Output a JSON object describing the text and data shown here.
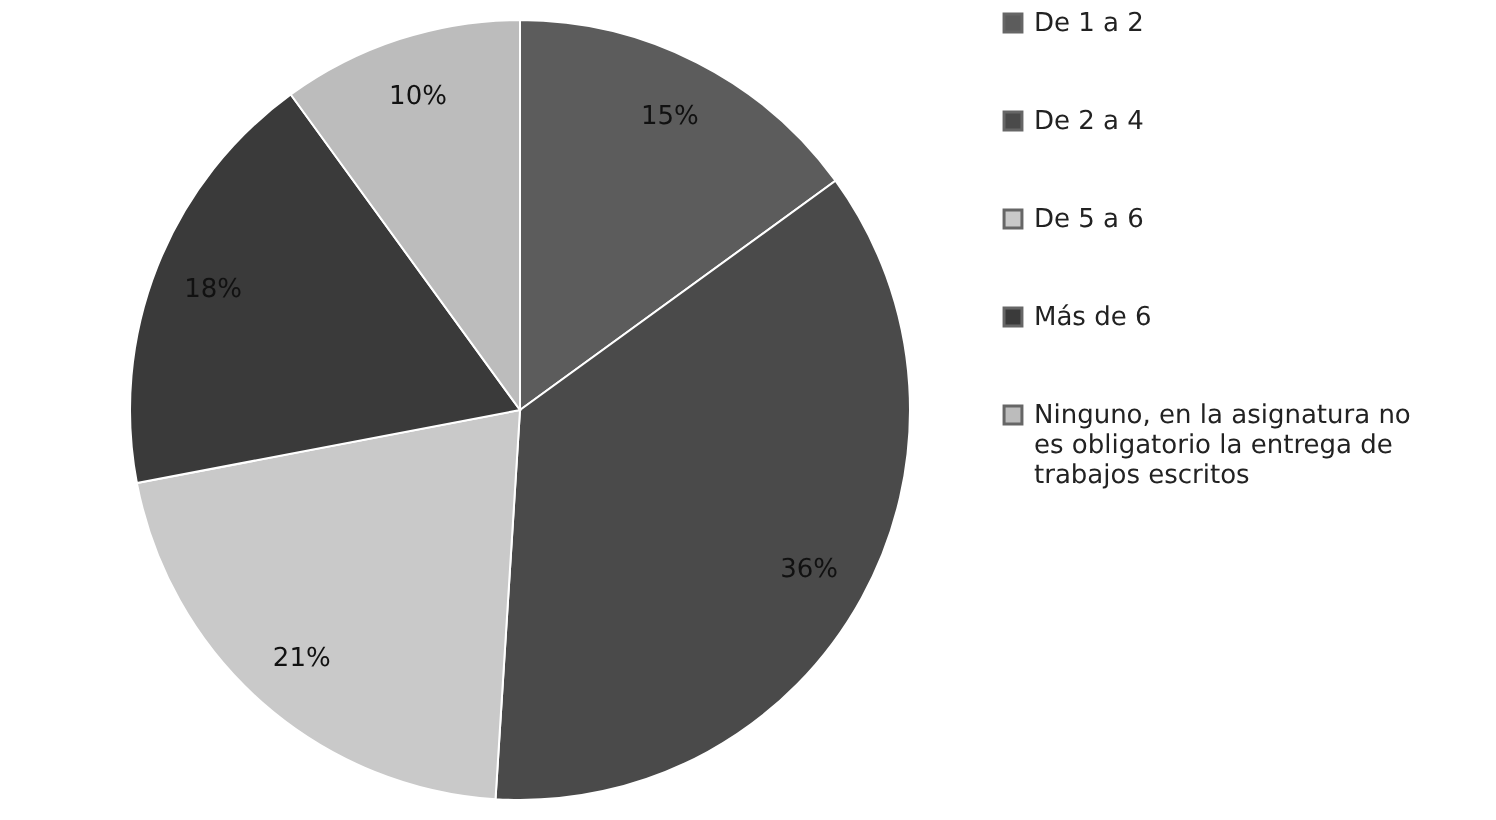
{
  "chart_data": {
    "type": "pie",
    "categories": [
      "De 1 a 2",
      "De 2 a 4",
      "De 5 a 6",
      "Más de 6",
      "Ninguno, en la asignatura no es obligatorio la entrega de trabajos escritos"
    ],
    "values": [
      15,
      36,
      21,
      18,
      10
    ],
    "value_labels": [
      "15%",
      "36%",
      "21%",
      "18%",
      "10%"
    ],
    "colors": [
      "#5c5c5c",
      "#4a4a4a",
      "#c9c9c9",
      "#3a3a3a",
      "#bcbcbc"
    ],
    "legend": "right"
  }
}
